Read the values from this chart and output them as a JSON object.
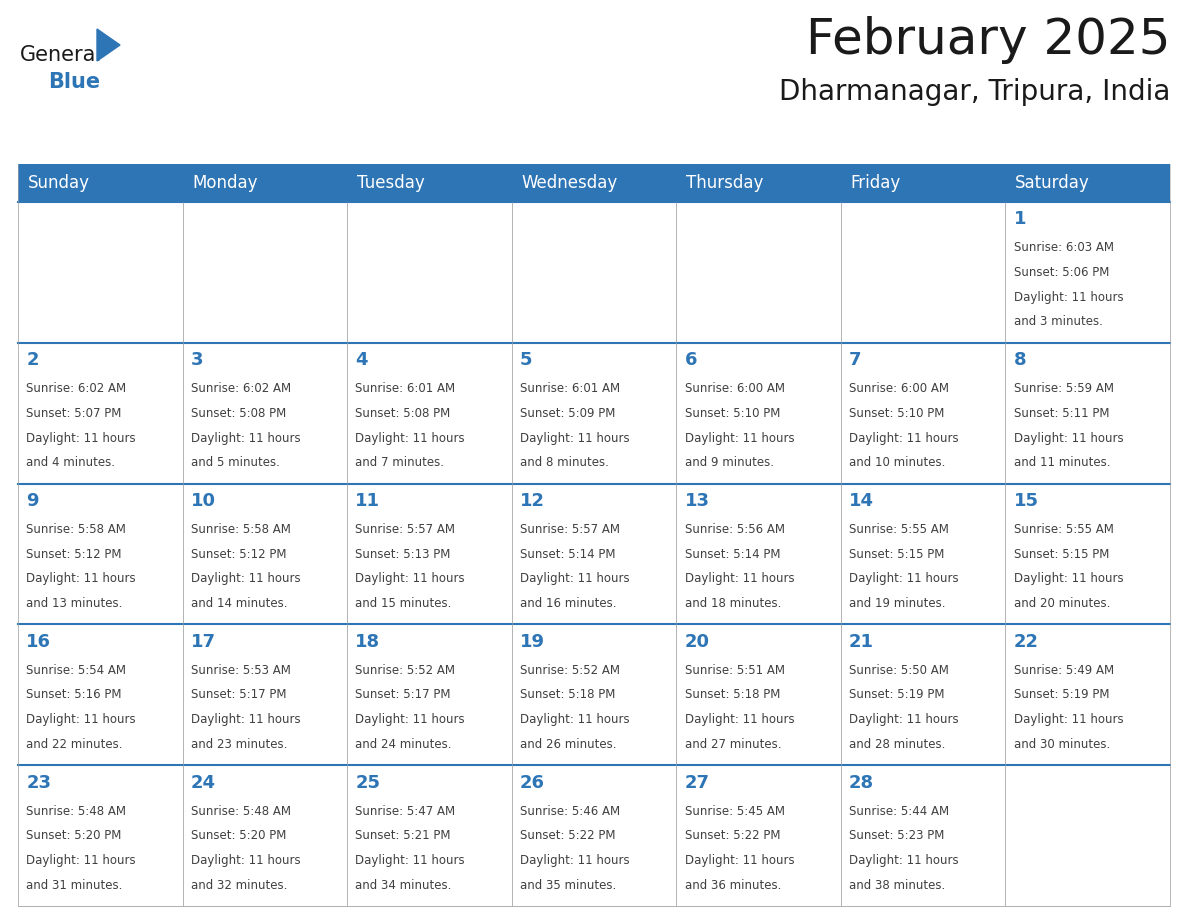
{
  "title": "February 2025",
  "subtitle": "Dharmanagar, Tripura, India",
  "header_color": "#2E75B6",
  "header_text_color": "#FFFFFF",
  "day_names": [
    "Sunday",
    "Monday",
    "Tuesday",
    "Wednesday",
    "Thursday",
    "Friday",
    "Saturday"
  ],
  "cell_bg_color": "#FFFFFF",
  "cell_border_color": "#AAAAAA",
  "day_num_color": "#2E75B6",
  "text_color": "#404040",
  "bg_color": "#FFFFFF",
  "logo_general_color": "#1a1a1a",
  "logo_blue_color": "#2E75B6",
  "title_fontsize": 36,
  "subtitle_fontsize": 20,
  "header_fontsize": 12,
  "day_num_fontsize": 13,
  "cell_text_fontsize": 8.5,
  "calendar_data": [
    [
      null,
      null,
      null,
      null,
      null,
      null,
      {
        "day": 1,
        "sunrise": "6:03 AM",
        "sunset": "5:06 PM",
        "daylight": "11 hours and 3 minutes."
      }
    ],
    [
      {
        "day": 2,
        "sunrise": "6:02 AM",
        "sunset": "5:07 PM",
        "daylight": "11 hours and 4 minutes."
      },
      {
        "day": 3,
        "sunrise": "6:02 AM",
        "sunset": "5:08 PM",
        "daylight": "11 hours and 5 minutes."
      },
      {
        "day": 4,
        "sunrise": "6:01 AM",
        "sunset": "5:08 PM",
        "daylight": "11 hours and 7 minutes."
      },
      {
        "day": 5,
        "sunrise": "6:01 AM",
        "sunset": "5:09 PM",
        "daylight": "11 hours and 8 minutes."
      },
      {
        "day": 6,
        "sunrise": "6:00 AM",
        "sunset": "5:10 PM",
        "daylight": "11 hours and 9 minutes."
      },
      {
        "day": 7,
        "sunrise": "6:00 AM",
        "sunset": "5:10 PM",
        "daylight": "11 hours and 10 minutes."
      },
      {
        "day": 8,
        "sunrise": "5:59 AM",
        "sunset": "5:11 PM",
        "daylight": "11 hours and 11 minutes."
      }
    ],
    [
      {
        "day": 9,
        "sunrise": "5:58 AM",
        "sunset": "5:12 PM",
        "daylight": "11 hours and 13 minutes."
      },
      {
        "day": 10,
        "sunrise": "5:58 AM",
        "sunset": "5:12 PM",
        "daylight": "11 hours and 14 minutes."
      },
      {
        "day": 11,
        "sunrise": "5:57 AM",
        "sunset": "5:13 PM",
        "daylight": "11 hours and 15 minutes."
      },
      {
        "day": 12,
        "sunrise": "5:57 AM",
        "sunset": "5:14 PM",
        "daylight": "11 hours and 16 minutes."
      },
      {
        "day": 13,
        "sunrise": "5:56 AM",
        "sunset": "5:14 PM",
        "daylight": "11 hours and 18 minutes."
      },
      {
        "day": 14,
        "sunrise": "5:55 AM",
        "sunset": "5:15 PM",
        "daylight": "11 hours and 19 minutes."
      },
      {
        "day": 15,
        "sunrise": "5:55 AM",
        "sunset": "5:15 PM",
        "daylight": "11 hours and 20 minutes."
      }
    ],
    [
      {
        "day": 16,
        "sunrise": "5:54 AM",
        "sunset": "5:16 PM",
        "daylight": "11 hours and 22 minutes."
      },
      {
        "day": 17,
        "sunrise": "5:53 AM",
        "sunset": "5:17 PM",
        "daylight": "11 hours and 23 minutes."
      },
      {
        "day": 18,
        "sunrise": "5:52 AM",
        "sunset": "5:17 PM",
        "daylight": "11 hours and 24 minutes."
      },
      {
        "day": 19,
        "sunrise": "5:52 AM",
        "sunset": "5:18 PM",
        "daylight": "11 hours and 26 minutes."
      },
      {
        "day": 20,
        "sunrise": "5:51 AM",
        "sunset": "5:18 PM",
        "daylight": "11 hours and 27 minutes."
      },
      {
        "day": 21,
        "sunrise": "5:50 AM",
        "sunset": "5:19 PM",
        "daylight": "11 hours and 28 minutes."
      },
      {
        "day": 22,
        "sunrise": "5:49 AM",
        "sunset": "5:19 PM",
        "daylight": "11 hours and 30 minutes."
      }
    ],
    [
      {
        "day": 23,
        "sunrise": "5:48 AM",
        "sunset": "5:20 PM",
        "daylight": "11 hours and 31 minutes."
      },
      {
        "day": 24,
        "sunrise": "5:48 AM",
        "sunset": "5:20 PM",
        "daylight": "11 hours and 32 minutes."
      },
      {
        "day": 25,
        "sunrise": "5:47 AM",
        "sunset": "5:21 PM",
        "daylight": "11 hours and 34 minutes."
      },
      {
        "day": 26,
        "sunrise": "5:46 AM",
        "sunset": "5:22 PM",
        "daylight": "11 hours and 35 minutes."
      },
      {
        "day": 27,
        "sunrise": "5:45 AM",
        "sunset": "5:22 PM",
        "daylight": "11 hours and 36 minutes."
      },
      {
        "day": 28,
        "sunrise": "5:44 AM",
        "sunset": "5:23 PM",
        "daylight": "11 hours and 38 minutes."
      },
      null
    ]
  ]
}
